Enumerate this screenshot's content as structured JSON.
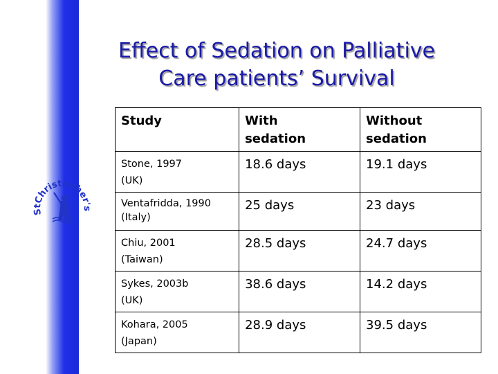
{
  "slide": {
    "title_line1": "Effect of Sedation on Palliative",
    "title_line2": "Care patients’ Survival",
    "logo_text": "StChristopher's",
    "colors": {
      "title": "#1a1aa8",
      "side_bar": "#1a2bd9",
      "logo": "#2233c8"
    }
  },
  "table": {
    "headers": {
      "study": "Study",
      "with_line1": "With",
      "with_line2": "sedation",
      "without_line1": "Without",
      "without_line2": "sedation"
    },
    "rows": [
      {
        "study": "Stone, 1997",
        "region": "(UK)",
        "with": "18.6 days",
        "without": "19.1 days"
      },
      {
        "study": "Ventafridda, 1990",
        "region": "(Italy)",
        "with": "25 days",
        "without": "23 days"
      },
      {
        "study": "Chiu, 2001",
        "region": "(Taiwan)",
        "with": "28.5 days",
        "without": "24.7 days"
      },
      {
        "study": "Sykes, 2003b",
        "region": "(UK)",
        "with": "38.6 days",
        "without": "14.2 days"
      },
      {
        "study": "Kohara, 2005",
        "region": "(Japan)",
        "with": "28.9 days",
        "without": "39.5 days"
      }
    ]
  }
}
